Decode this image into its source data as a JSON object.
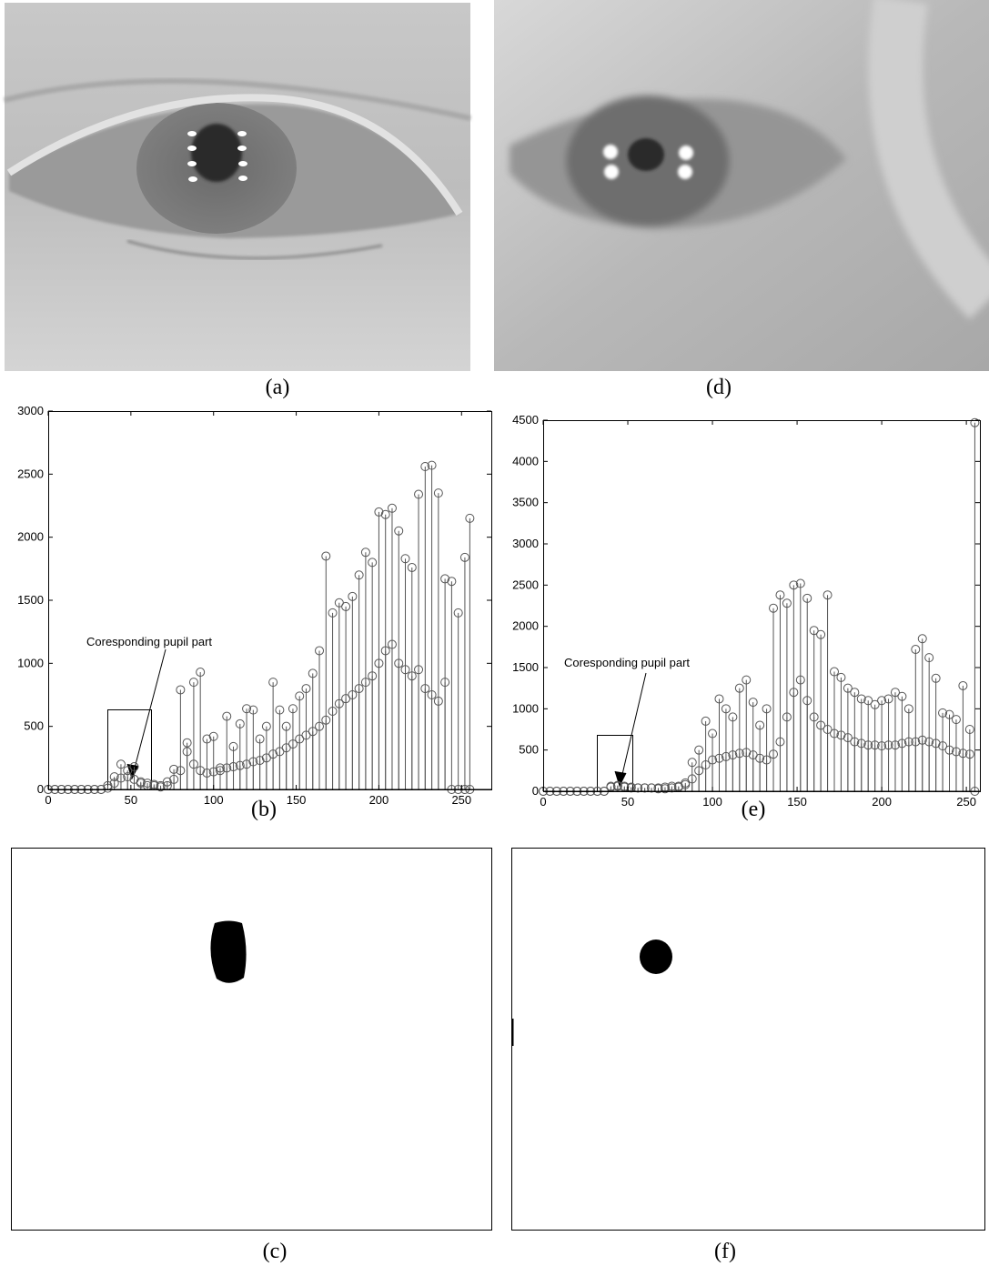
{
  "panel_labels": [
    "(a)",
    "(d)",
    "(b)",
    "(e)",
    "(c)",
    "(f)"
  ],
  "chart_data": [
    {
      "type": "stem",
      "annotation": "Coresponding pupil part",
      "xlim": [
        0,
        268
      ],
      "ylim": [
        0,
        3000
      ],
      "xticks": [
        0,
        50,
        100,
        150,
        200,
        250
      ],
      "yticks": [
        0,
        500,
        1000,
        1500,
        2000,
        2500,
        3000
      ],
      "x": [
        0,
        4,
        8,
        12,
        16,
        20,
        24,
        28,
        32,
        36,
        40,
        44,
        48,
        52,
        56,
        60,
        64,
        68,
        72,
        76,
        80,
        84,
        88,
        92,
        96,
        100,
        104,
        108,
        112,
        116,
        120,
        124,
        128,
        132,
        136,
        140,
        144,
        148,
        152,
        156,
        160,
        164,
        168,
        172,
        176,
        180,
        184,
        188,
        192,
        196,
        200,
        204,
        208,
        212,
        216,
        220,
        224,
        228,
        232,
        236,
        240,
        244,
        248,
        252,
        255
      ],
      "series": [
        {
          "color": "#555555",
          "values": [
            0,
            0,
            0,
            0,
            0,
            0,
            0,
            0,
            0,
            30,
            100,
            200,
            150,
            180,
            60,
            50,
            40,
            30,
            60,
            160,
            790,
            370,
            850,
            930,
            400,
            420,
            170,
            580,
            340,
            520,
            640,
            630,
            400,
            500,
            850,
            630,
            500,
            640,
            740,
            800,
            920,
            1100,
            1850,
            1400,
            1480,
            1450,
            1530,
            1700,
            1880,
            1800,
            2200,
            2180,
            2230,
            2050,
            1830,
            1760,
            2340,
            2560,
            2570,
            2350,
            1670,
            1650,
            1400,
            1840,
            2150
          ]
        },
        {
          "color": "#555555",
          "values": [
            0,
            0,
            0,
            0,
            0,
            0,
            0,
            0,
            0,
            10,
            50,
            90,
            100,
            80,
            50,
            30,
            30,
            20,
            30,
            80,
            150,
            300,
            200,
            150,
            130,
            140,
            150,
            170,
            180,
            190,
            200,
            220,
            230,
            250,
            280,
            300,
            330,
            360,
            400,
            430,
            460,
            500,
            550,
            620,
            680,
            720,
            750,
            800,
            850,
            900,
            1000,
            1100,
            1150,
            1000,
            950,
            900,
            950,
            800,
            750,
            700,
            850,
            0,
            0,
            0,
            0
          ]
        }
      ]
    },
    {
      "type": "stem",
      "annotation": "Coresponding pupil part",
      "xlim": [
        0,
        258
      ],
      "ylim": [
        0,
        4500
      ],
      "xticks": [
        0,
        50,
        100,
        150,
        200,
        250
      ],
      "yticks": [
        0,
        500,
        1000,
        1500,
        2000,
        2500,
        3000,
        3500,
        4000,
        4500
      ],
      "x": [
        0,
        4,
        8,
        12,
        16,
        20,
        24,
        28,
        32,
        36,
        40,
        44,
        48,
        52,
        56,
        60,
        64,
        68,
        72,
        76,
        80,
        84,
        88,
        92,
        96,
        100,
        104,
        108,
        112,
        116,
        120,
        124,
        128,
        132,
        136,
        140,
        144,
        148,
        152,
        156,
        160,
        164,
        168,
        172,
        176,
        180,
        184,
        188,
        192,
        196,
        200,
        204,
        208,
        212,
        216,
        220,
        224,
        228,
        232,
        236,
        240,
        244,
        248,
        252,
        255
      ],
      "series": [
        {
          "color": "#555555",
          "values": [
            0,
            0,
            0,
            0,
            0,
            0,
            0,
            0,
            0,
            0,
            60,
            70,
            60,
            50,
            40,
            40,
            40,
            40,
            50,
            60,
            60,
            100,
            350,
            500,
            850,
            700,
            1120,
            1000,
            900,
            1250,
            1350,
            1080,
            800,
            1000,
            2220,
            2380,
            2280,
            2500,
            2520,
            2340,
            1950,
            1900,
            2380,
            1450,
            1380,
            1250,
            1200,
            1120,
            1100,
            1050,
            1100,
            1120,
            1200,
            1150,
            1000,
            1720,
            1850,
            1620,
            1370,
            950,
            930,
            870,
            1280,
            750,
            4470
          ]
        },
        {
          "color": "#555555",
          "values": [
            0,
            0,
            0,
            0,
            0,
            0,
            0,
            0,
            0,
            0,
            50,
            60,
            50,
            40,
            40,
            40,
            40,
            30,
            30,
            40,
            50,
            80,
            150,
            250,
            320,
            380,
            400,
            420,
            440,
            460,
            470,
            440,
            400,
            380,
            450,
            600,
            900,
            1200,
            1350,
            1100,
            900,
            800,
            750,
            700,
            680,
            650,
            600,
            580,
            560,
            560,
            550,
            560,
            560,
            580,
            600,
            600,
            620,
            600,
            580,
            550,
            500,
            480,
            460,
            450,
            0
          ]
        }
      ]
    }
  ]
}
